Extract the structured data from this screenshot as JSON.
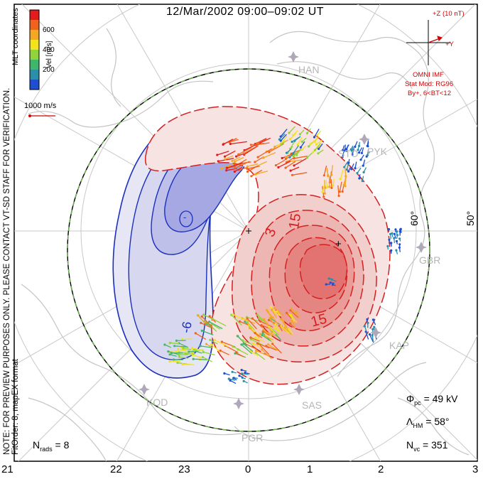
{
  "title": "12/Mar/2002 09:00–09:02 UT",
  "notes": {
    "line1": "NOTE: FOR PREVIEW PURPOSES ONLY. PLEASE CONTACT VT-SD STAFF FOR VERIFICATION.",
    "line2": "FitOrder: 8,  mapEX format",
    "coords": "MLT coordinates"
  },
  "legend": {
    "title": "Vel [m/s]",
    "ticks": [
      "600",
      "400",
      "200"
    ],
    "colors": [
      "#e41a1c",
      "#f0621e",
      "#f5a623",
      "#f2e31c",
      "#8fd43a",
      "#3fb76a",
      "#2a8fa8",
      "#1e4fd0"
    ],
    "scale_label": "1000 m/s"
  },
  "imf": {
    "z_label": "+Z (10 nT)",
    "y_label": "+Y",
    "source": "OMNI IMF",
    "model": "Stat Mod: RG96",
    "condition": "By+, 6<BT<12"
  },
  "stations": [
    "HAN",
    "STO",
    "PYK",
    "GBR",
    "KAP",
    "SAS",
    "PGR",
    "KOD"
  ],
  "latitude_labels": [
    "60°",
    "50°"
  ],
  "contour_labels": [
    "-",
    "+",
    "3",
    "15",
    "15",
    "-6"
  ],
  "stats": {
    "phi_pc": "Φ",
    "phi_pc_sub": "pc",
    "phi_pc_value": " = 49 kV",
    "lambda_hm": "Λ",
    "lambda_hm_sub": "HM",
    "lambda_hm_value": " = 58°",
    "n_vc": "N",
    "n_vc_sub": "vc",
    "n_vc_value": " = 351",
    "n_rads": "N",
    "n_rads_sub": "rads",
    "n_rads_value": " = 8"
  },
  "mlt_ticks": [
    "21",
    "22",
    "23",
    "0",
    "1",
    "2",
    "3"
  ],
  "colors": {
    "negative": "#1b2fbf",
    "positive": "#d42020",
    "boundary": "#6ab04c"
  }
}
